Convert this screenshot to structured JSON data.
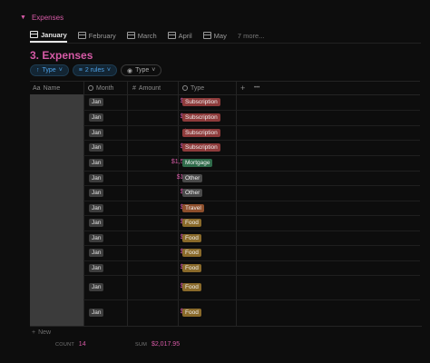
{
  "section": {
    "label": "Expenses"
  },
  "tabs": [
    {
      "label": "January",
      "active": true
    },
    {
      "label": "February"
    },
    {
      "label": "March"
    },
    {
      "label": "April"
    },
    {
      "label": "May"
    }
  ],
  "more_tabs": "7 more...",
  "view_title": "3. Expenses",
  "filters": {
    "sort": "Type",
    "rules": "2 rules",
    "group": "Type"
  },
  "columns": {
    "name": "Name",
    "month": "Month",
    "amount": "Amount",
    "type": "Type",
    "add": "+",
    "more": "•••"
  },
  "rows": [
    {
      "month": "Jan",
      "amount": "$21.99",
      "type": "Subscription",
      "type_color": "#8e3b3b"
    },
    {
      "month": "Jan",
      "amount": "$84.00",
      "type": "Subscription",
      "type_color": "#8e3b3b"
    },
    {
      "month": "Jan",
      "amount": "$1.49",
      "type": "Subscription",
      "type_color": "#8e3b3b"
    },
    {
      "month": "Jan",
      "amount": "$12.49",
      "type": "Subscription",
      "type_color": "#8e3b3b"
    },
    {
      "month": "Jan",
      "amount": "$1,515.14",
      "type": "Mortgage",
      "type_color": "#2f6b4a"
    },
    {
      "month": "Jan",
      "amount": "$163.71",
      "type": "Other",
      "type_color": "#4a4a4a"
    },
    {
      "month": "Jan",
      "amount": "$31.10",
      "type": "Other",
      "type_color": "#4a4a4a"
    },
    {
      "month": "Jan",
      "amount": "$10.59",
      "type": "Travel",
      "type_color": "#8e4f2c"
    },
    {
      "month": "Jan",
      "amount": "$56.00",
      "type": "Food",
      "type_color": "#8a6a2a"
    },
    {
      "month": "Jan",
      "amount": "$39.00",
      "type": "Food",
      "type_color": "#8a6a2a"
    },
    {
      "month": "Jan",
      "amount": "$15.74",
      "type": "Food",
      "type_color": "#8a6a2a"
    },
    {
      "month": "Jan",
      "amount": "$13.00",
      "type": "Food",
      "type_color": "#8a6a2a"
    },
    {
      "month": "Jan",
      "amount": "$41.00",
      "type": "Food",
      "type_color": "#8a6a2a"
    },
    {
      "month": "Jan",
      "amount": "$12.70",
      "type": "Food",
      "type_color": "#8a6a2a"
    }
  ],
  "new_label": "New",
  "footer": {
    "count_label": "COUNT",
    "count_value": "14",
    "sum_label": "SUM",
    "sum_value": "$2,017.95"
  }
}
